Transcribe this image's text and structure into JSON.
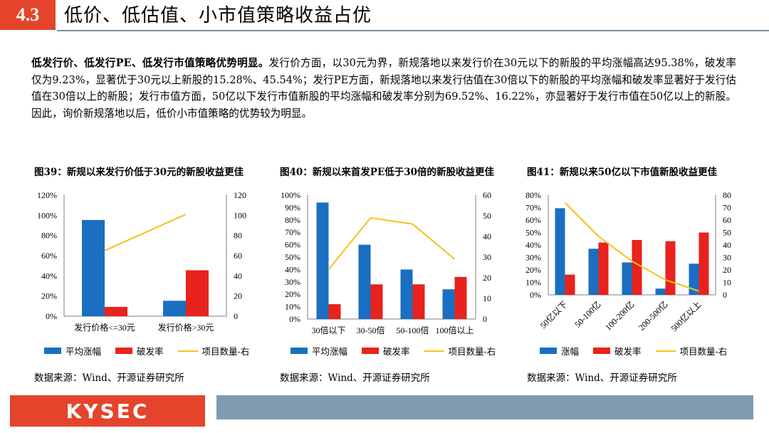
{
  "header": {
    "section_number": "4.3",
    "title": "低价、低估值、小市值策略收益占优"
  },
  "intro": {
    "bold": "低发行价、低发行PE、低发行市值策略优势明显。",
    "text": "发行价方面，以30元为界，新规落地以来发行价在30元以下的新股的平均涨幅高达95.38%，破发率仅为9.23%，显著优于30元以上新股的15.28%、45.54%；发行PE方面，新规落地以来发行估值在30倍以下的新股的平均涨幅和破发率显著好于发行估值在30倍以上的新股；发行市值方面，50亿以下发行市值新股的平均涨幅和破发率分别为69.52%、16.22%，亦显著好于发行市值在50亿以上的新股。因此，询价新规落地以后，低价小市值策略的优势较为明显。"
  },
  "colors": {
    "blue": "#1a6fc2",
    "red": "#e8221c",
    "yellow": "#f5c21b",
    "accent": "#e4442b",
    "grey_bar": "#7f9bb0"
  },
  "charts": [
    {
      "title": "图39：新规以来发行价低于30元的新股收益更佳",
      "legend": [
        "平均涨幅",
        "破发率",
        "项目数量-右"
      ],
      "source": "数据来源：Wind、开源证券研究所"
    },
    {
      "title": "图40：新规以来首发PE低于30倍的新股收益更佳",
      "legend": [
        "平均涨幅",
        "破发率",
        "项目数量-右"
      ],
      "source": "数据来源：Wind、开源证券研究所"
    },
    {
      "title": "图41：新规以来50亿以下市值新股收益更佳",
      "legend": [
        "涨幅",
        "破发率",
        "项目数量-右"
      ],
      "source": "数据来源：Wind、开源证券研究所"
    }
  ],
  "chart_data": [
    {
      "type": "bar",
      "categories": [
        "发行价格<=30元",
        "发行价格>30元"
      ],
      "series": [
        {
          "name": "平均涨幅",
          "values": [
            95.38,
            15.28
          ],
          "axis": "left"
        },
        {
          "name": "破发率",
          "values": [
            9.23,
            45.54
          ],
          "axis": "left"
        },
        {
          "name": "项目数量-右",
          "type": "line",
          "values": [
            65,
            101
          ],
          "axis": "right"
        }
      ],
      "y_left": {
        "min": 0,
        "max": 120,
        "step": 20,
        "tick_labels": [
          "0%",
          "20%",
          "40%",
          "60%",
          "80%",
          "100%",
          "120%"
        ]
      },
      "y_right": {
        "min": 0,
        "max": 120,
        "step": 20,
        "tick_labels": [
          "0",
          "20",
          "40",
          "60",
          "80",
          "100",
          "120"
        ]
      }
    },
    {
      "type": "bar",
      "categories": [
        "30倍以下",
        "30-50倍",
        "50-100倍",
        "100倍以上"
      ],
      "series": [
        {
          "name": "平均涨幅",
          "values": [
            94,
            60,
            40,
            24
          ],
          "axis": "left"
        },
        {
          "name": "破发率",
          "values": [
            12,
            28,
            28,
            34
          ],
          "axis": "left"
        },
        {
          "name": "项目数量-右",
          "type": "line",
          "values": [
            24,
            49,
            46,
            29
          ],
          "axis": "right"
        }
      ],
      "y_left": {
        "min": 0,
        "max": 100,
        "step": 10,
        "tick_labels": [
          "0%",
          "10%",
          "20%",
          "30%",
          "40%",
          "50%",
          "60%",
          "70%",
          "80%",
          "90%",
          "100%"
        ]
      },
      "y_right": {
        "min": 0,
        "max": 60,
        "step": 10,
        "tick_labels": [
          "0",
          "10",
          "20",
          "30",
          "40",
          "50",
          "60"
        ]
      }
    },
    {
      "type": "bar",
      "categories": [
        "50亿以下",
        "50-100亿",
        "100-200亿",
        "200-500亿",
        "500亿以上"
      ],
      "series": [
        {
          "name": "涨幅",
          "values": [
            69.52,
            37,
            26,
            5,
            25
          ],
          "axis": "left"
        },
        {
          "name": "破发率",
          "values": [
            16.22,
            42,
            44,
            43,
            50
          ],
          "axis": "left"
        },
        {
          "name": "项目数量-右",
          "type": "line",
          "values": [
            74,
            47,
            27,
            12,
            3
          ],
          "axis": "right"
        }
      ],
      "y_left": {
        "min": 0,
        "max": 80,
        "step": 10,
        "tick_labels": [
          "0%",
          "10%",
          "20%",
          "30%",
          "40%",
          "50%",
          "60%",
          "70%",
          "80%"
        ]
      },
      "y_right": {
        "min": 0,
        "max": 80,
        "step": 10,
        "tick_labels": [
          "0",
          "10",
          "20",
          "30",
          "40",
          "50",
          "60",
          "70",
          "80"
        ]
      }
    }
  ],
  "footer": {
    "logo": "KYSEC"
  }
}
